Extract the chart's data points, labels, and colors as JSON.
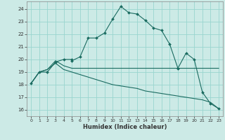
{
  "xlabel": "Humidex (Indice chaleur)",
  "bg_color": "#cceae6",
  "grid_color": "#99d5cf",
  "line_color": "#1a6b60",
  "xlim": [
    -0.5,
    23.5
  ],
  "ylim": [
    15.5,
    24.6
  ],
  "yticks": [
    16,
    17,
    18,
    19,
    20,
    21,
    22,
    23,
    24
  ],
  "xticks": [
    0,
    1,
    2,
    3,
    4,
    5,
    6,
    7,
    8,
    9,
    10,
    11,
    12,
    13,
    14,
    15,
    16,
    17,
    18,
    19,
    20,
    21,
    22,
    23
  ],
  "series1_x": [
    0,
    1,
    2,
    3,
    4,
    5,
    5,
    6,
    7,
    8,
    9,
    10,
    11,
    12,
    13,
    14,
    15,
    16,
    17,
    18,
    19,
    20,
    21,
    22,
    23
  ],
  "series1_y": [
    18.1,
    19.0,
    19.0,
    19.8,
    20.0,
    20.0,
    19.9,
    20.2,
    21.7,
    21.7,
    22.1,
    23.2,
    24.2,
    23.7,
    23.6,
    23.1,
    22.5,
    22.3,
    21.2,
    19.3,
    20.5,
    20.0,
    17.4,
    16.5,
    16.1
  ],
  "series2_x": [
    0,
    1,
    2,
    3,
    4,
    5,
    6,
    7,
    8,
    9,
    10,
    11,
    12,
    13,
    14,
    15,
    16,
    17,
    18,
    21,
    22,
    23
  ],
  "series2_y": [
    18.1,
    19.0,
    19.2,
    19.9,
    19.5,
    19.3,
    19.3,
    19.3,
    19.3,
    19.3,
    19.3,
    19.3,
    19.3,
    19.3,
    19.3,
    19.3,
    19.3,
    19.3,
    19.3,
    19.3,
    19.3,
    19.3
  ],
  "series3_x": [
    0,
    1,
    2,
    3,
    4,
    5,
    6,
    7,
    8,
    9,
    10,
    11,
    12,
    13,
    14,
    15,
    16,
    17,
    18,
    19,
    20,
    21,
    22,
    23
  ],
  "series3_y": [
    18.1,
    19.0,
    19.2,
    19.7,
    19.2,
    19.0,
    18.8,
    18.6,
    18.4,
    18.2,
    18.0,
    17.9,
    17.8,
    17.7,
    17.5,
    17.4,
    17.3,
    17.2,
    17.1,
    17.0,
    16.9,
    16.8,
    16.6,
    16.1
  ],
  "marker_x": [
    0,
    1,
    2,
    3,
    4,
    6,
    7,
    8,
    9,
    10,
    11,
    12,
    13,
    14,
    15,
    16,
    17,
    18,
    19,
    20,
    21,
    22,
    23
  ],
  "marker_y": [
    18.1,
    19.0,
    19.0,
    19.8,
    20.0,
    20.2,
    21.7,
    21.7,
    22.1,
    23.2,
    24.2,
    23.7,
    23.6,
    23.1,
    22.5,
    22.3,
    21.2,
    19.3,
    20.5,
    20.0,
    17.4,
    16.5,
    16.1
  ]
}
